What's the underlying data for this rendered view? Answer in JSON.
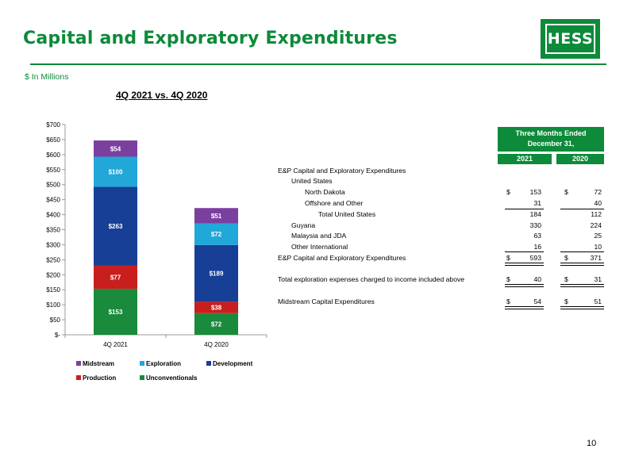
{
  "header": {
    "title": "Capital and Exploratory Expenditures",
    "logo_text": "HESS",
    "units": "$ In Millions",
    "chart_title": "4Q 2021 vs. 4Q 2020"
  },
  "colors": {
    "brand_green": "#0d8a3a",
    "Midstream": "#7b3fa0",
    "Exploration": "#22a7d9",
    "Development": "#173f96",
    "Production": "#c81e1e",
    "Unconventionals": "#1a8a3c"
  },
  "chart_data": {
    "type": "bar",
    "stacked": true,
    "categories": [
      "4Q 2021",
      "4Q 2020"
    ],
    "series": [
      {
        "name": "Unconventionals",
        "values": [
          153,
          72
        ],
        "labels": [
          "$153",
          "$72"
        ]
      },
      {
        "name": "Production",
        "values": [
          77,
          38
        ],
        "labels": [
          "$77",
          "$38"
        ]
      },
      {
        "name": "Development",
        "values": [
          263,
          189
        ],
        "labels": [
          "$263",
          "$189"
        ]
      },
      {
        "name": "Exploration",
        "values": [
          100,
          72
        ],
        "labels": [
          "$100",
          "$72"
        ]
      },
      {
        "name": "Midstream",
        "values": [
          54,
          51
        ],
        "labels": [
          "$54",
          "$51"
        ]
      }
    ],
    "ylim": [
      0,
      700
    ],
    "yticks": [
      0,
      50,
      100,
      150,
      200,
      250,
      300,
      350,
      400,
      450,
      500,
      550,
      600,
      650,
      700
    ],
    "ytick_labels": [
      "$-",
      "$50",
      "$100",
      "$150",
      "$200",
      "$250",
      "$300",
      "$350",
      "$400",
      "$450",
      "$500",
      "$550",
      "$600",
      "$650",
      "$700"
    ],
    "legend_order": [
      "Midstream",
      "Exploration",
      "Development",
      "Production",
      "Unconventionals"
    ],
    "legend_position": "bottom",
    "grid": false
  },
  "table": {
    "header_line1": "Three Months Ended",
    "header_line2": "December 31,",
    "col_2021": "2021",
    "col_2020": "2020",
    "rows": [
      {
        "label": "E&P Capital and Exploratory Expenditures",
        "v2021": "",
        "v2020": ""
      },
      {
        "label": "United States",
        "v2021": "",
        "v2020": ""
      },
      {
        "label": "North Dakota",
        "v2021": "153",
        "v2020": "72"
      },
      {
        "label": "Offshore and Other",
        "v2021": "31",
        "v2020": "40"
      },
      {
        "label": "Total United States",
        "v2021": "184",
        "v2020": "112"
      },
      {
        "label": "Guyana",
        "v2021": "330",
        "v2020": "224"
      },
      {
        "label": "Malaysia and JDA",
        "v2021": "63",
        "v2020": "25"
      },
      {
        "label": "Other International",
        "v2021": "16",
        "v2020": "10"
      },
      {
        "label": "E&P Capital and Exploratory Expenditures",
        "v2021": "593",
        "v2020": "371"
      },
      {
        "label": "Total exploration expenses charged to income included above",
        "v2021": "40",
        "v2020": "31"
      },
      {
        "label": "Midstream Capital Expenditures",
        "v2021": "54",
        "v2020": "51"
      }
    ],
    "dollar_sign": "$"
  },
  "page_number": "10"
}
